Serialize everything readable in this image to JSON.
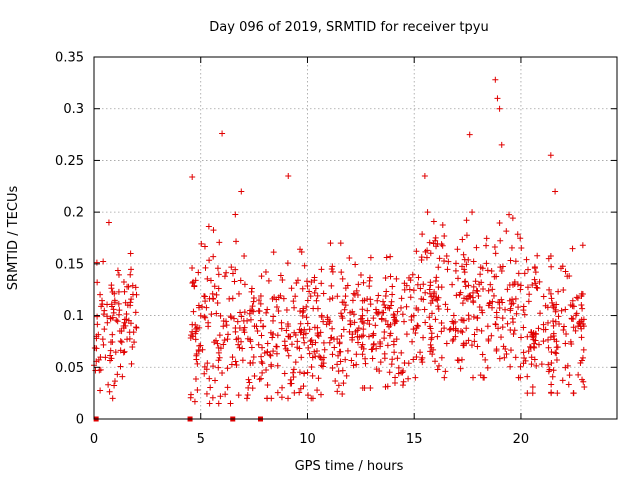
{
  "chart_data": {
    "type": "scatter",
    "title": "Day 096 of 2019, SRMTID for receiver tpyu",
    "xlabel": "GPS time / hours",
    "ylabel": "SRMTID / TECUs",
    "xlim": [
      0,
      24.5
    ],
    "ylim": [
      0,
      0.35
    ],
    "x_ticks": [
      0,
      5,
      10,
      15,
      20
    ],
    "x_tick_labels": [
      "0",
      "5",
      "10",
      "15",
      "20"
    ],
    "y_ticks": [
      0,
      0.05,
      0.1,
      0.15,
      0.2,
      0.25,
      0.3,
      0.35
    ],
    "y_tick_labels": [
      "0",
      "0.05",
      "0.1",
      "0.15",
      "0.2",
      "0.25",
      "0.3",
      "0.35"
    ],
    "grid": true,
    "marker": "plus",
    "color": "#e00000",
    "data_gaps_hours": [
      [
        2.0,
        4.5
      ]
    ],
    "zero_value_points": [
      {
        "x": 0.1,
        "y": 0
      },
      {
        "x": 4.5,
        "y": 0
      },
      {
        "x": 6.5,
        "y": 0
      },
      {
        "x": 7.8,
        "y": 0
      }
    ],
    "notable_outliers": [
      {
        "x": 0.7,
        "y": 0.19
      },
      {
        "x": 4.6,
        "y": 0.234
      },
      {
        "x": 6.0,
        "y": 0.276
      },
      {
        "x": 6.9,
        "y": 0.22
      },
      {
        "x": 9.1,
        "y": 0.235
      },
      {
        "x": 15.5,
        "y": 0.235
      },
      {
        "x": 17.6,
        "y": 0.275
      },
      {
        "x": 18.8,
        "y": 0.328
      },
      {
        "x": 18.9,
        "y": 0.31
      },
      {
        "x": 19.0,
        "y": 0.3
      },
      {
        "x": 19.1,
        "y": 0.265
      },
      {
        "x": 21.4,
        "y": 0.255
      },
      {
        "x": 21.6,
        "y": 0.22
      },
      {
        "x": 22.9,
        "y": 0.168
      }
    ],
    "density_profile": [
      {
        "x_range": [
          0.0,
          2.0
        ],
        "y_low": 0.02,
        "y_high": 0.16,
        "y_center": 0.09
      },
      {
        "x_range": [
          4.5,
          7.0
        ],
        "y_low": 0.015,
        "y_high": 0.2,
        "y_center": 0.09
      },
      {
        "x_range": [
          7.0,
          12.0
        ],
        "y_low": 0.02,
        "y_high": 0.17,
        "y_center": 0.085
      },
      {
        "x_range": [
          12.0,
          15.0
        ],
        "y_low": 0.03,
        "y_high": 0.16,
        "y_center": 0.09
      },
      {
        "x_range": [
          15.0,
          20.0
        ],
        "y_low": 0.04,
        "y_high": 0.2,
        "y_center": 0.11
      },
      {
        "x_range": [
          20.0,
          23.0
        ],
        "y_low": 0.025,
        "y_high": 0.17,
        "y_center": 0.09
      }
    ]
  }
}
